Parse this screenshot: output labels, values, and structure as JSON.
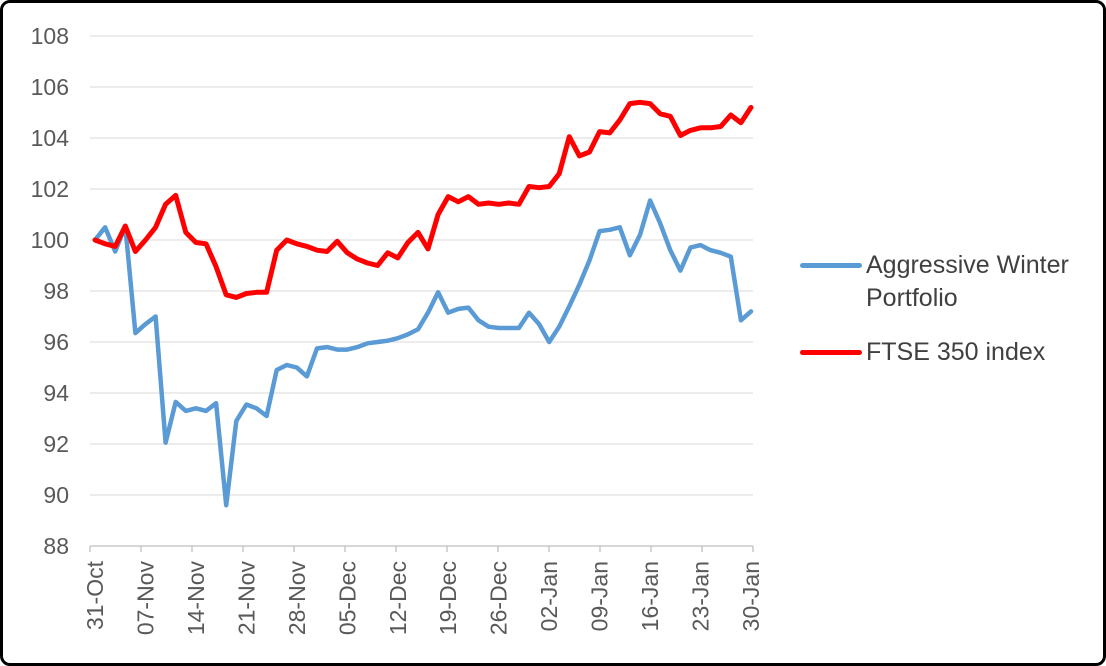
{
  "chart_data": {
    "type": "line",
    "title": "",
    "xlabel": "",
    "ylabel": "",
    "ylim": [
      88,
      108
    ],
    "ytick_step": 2,
    "y_tick_labels": [
      "88",
      "90",
      "92",
      "94",
      "96",
      "98",
      "100",
      "102",
      "104",
      "106",
      "108"
    ],
    "x_tick_labels": [
      "31-Oct",
      "07-Nov",
      "14-Nov",
      "21-Nov",
      "28-Nov",
      "05-Dec",
      "12-Dec",
      "19-Dec",
      "26-Dec",
      "02-Jan",
      "09-Jan",
      "16-Jan",
      "23-Jan",
      "30-Jan"
    ],
    "grid": "horizontal",
    "gridline_color": "#D9D9D9",
    "axis_line_color": "#BFBFBF",
    "axis_label_color": "#595959",
    "legend_position": "right",
    "series": [
      {
        "name": "Aggressive Winter Portfolio",
        "color": "#5B9BD5",
        "values": [
          100.0,
          100.5,
          99.55,
          100.55,
          96.35,
          96.7,
          97.0,
          92.05,
          93.65,
          93.3,
          93.4,
          93.3,
          93.6,
          89.6,
          92.9,
          93.55,
          93.4,
          93.1,
          94.9,
          95.1,
          95.0,
          94.65,
          95.75,
          95.8,
          95.7,
          95.7,
          95.8,
          95.95,
          96.0,
          96.05,
          96.15,
          96.3,
          96.5,
          97.15,
          97.95,
          97.15,
          97.3,
          97.35,
          96.85,
          96.6,
          96.55,
          96.55,
          96.55,
          97.15,
          96.7,
          96.0,
          96.6,
          97.4,
          98.25,
          99.2,
          100.35,
          100.4,
          100.5,
          99.4,
          100.2,
          101.55,
          100.65,
          99.6,
          98.8,
          99.7,
          99.8,
          99.6,
          99.5,
          99.35,
          96.85,
          97.2
        ]
      },
      {
        "name": "FTSE 350 index",
        "color": "#FF0000",
        "values": [
          100.0,
          99.85,
          99.75,
          100.55,
          99.55,
          100.0,
          100.5,
          101.4,
          101.75,
          100.3,
          99.9,
          99.85,
          98.95,
          97.85,
          97.75,
          97.9,
          97.95,
          97.95,
          99.6,
          100.0,
          99.85,
          99.75,
          99.6,
          99.55,
          99.95,
          99.5,
          99.25,
          99.1,
          99.0,
          99.5,
          99.3,
          99.9,
          100.3,
          99.65,
          101.0,
          101.7,
          101.5,
          101.7,
          101.4,
          101.45,
          101.4,
          101.45,
          101.4,
          102.1,
          102.05,
          102.1,
          102.6,
          104.05,
          103.3,
          103.45,
          104.25,
          104.2,
          104.7,
          105.35,
          105.4,
          105.35,
          104.95,
          104.85,
          104.1,
          104.3,
          104.4,
          104.4,
          104.45,
          104.9,
          104.6,
          105.2
        ]
      }
    ]
  },
  "legend": {
    "items": [
      {
        "label": "Aggressive Winter Portfolio",
        "color": "#5B9BD5"
      },
      {
        "label": "FTSE 350 index",
        "color": "#FF0000"
      }
    ]
  }
}
